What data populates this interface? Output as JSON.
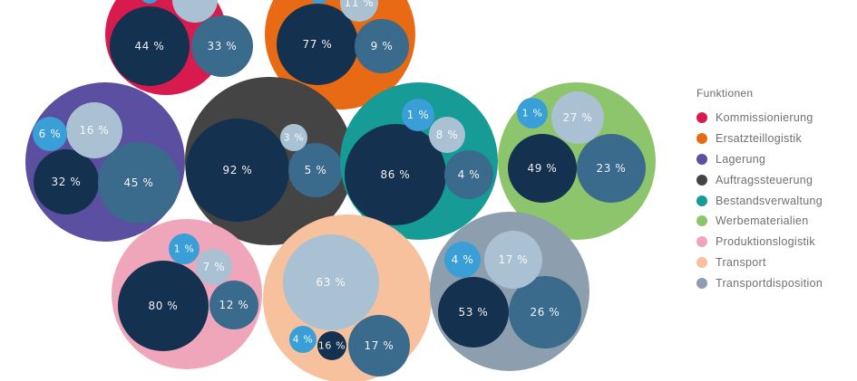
{
  "chart_data": {
    "type": "bubble-pack",
    "legend": {
      "title": "Funktionen",
      "placement": "right",
      "entries": [
        {
          "label": "Kommissionierung",
          "color": "#d81b4f"
        },
        {
          "label": "Ersatzteillogistik",
          "color": "#e86a14"
        },
        {
          "label": "Lagerung",
          "color": "#5a4fa0"
        },
        {
          "label": "Auftragssteuerung",
          "color": "#444444"
        },
        {
          "label": "Bestandsverwaltung",
          "color": "#169b96"
        },
        {
          "label": "Werbematerialien",
          "color": "#8cc56b"
        },
        {
          "label": "Produktionslogistik",
          "color": "#efa6ba"
        },
        {
          "label": "Transport",
          "color": "#f6c19c"
        },
        {
          "label": "Transportdisposition",
          "color": "#8d9fae"
        }
      ]
    },
    "shade_colors": {
      "navy": "#14314f",
      "steel": "#3a6a8c",
      "sky": "#3a9fd6",
      "pale": "#a9c1d3"
    },
    "groups": [
      {
        "function": "Kommissionierung",
        "values": [
          {
            "label": "44 %",
            "value": 44,
            "shade": "navy"
          },
          {
            "label": "33 %",
            "value": 33,
            "shade": "steel"
          },
          {
            "label": "",
            "value": null,
            "shade": "pale"
          },
          {
            "label": "",
            "value": null,
            "shade": "sky"
          }
        ]
      },
      {
        "function": "Ersatzteillogistik",
        "values": [
          {
            "label": "77 %",
            "value": 77,
            "shade": "navy"
          },
          {
            "label": "9 %",
            "value": 9,
            "shade": "steel"
          },
          {
            "label": "11 %",
            "value": 11,
            "shade": "pale"
          },
          {
            "label": "",
            "value": null,
            "shade": "sky"
          }
        ]
      },
      {
        "function": "Lagerung",
        "values": [
          {
            "label": "32 %",
            "value": 32,
            "shade": "navy"
          },
          {
            "label": "45 %",
            "value": 45,
            "shade": "steel"
          },
          {
            "label": "16 %",
            "value": 16,
            "shade": "pale"
          },
          {
            "label": "6 %",
            "value": 6,
            "shade": "sky"
          }
        ]
      },
      {
        "function": "Auftragssteuerung",
        "values": [
          {
            "label": "92 %",
            "value": 92,
            "shade": "navy"
          },
          {
            "label": "5 %",
            "value": 5,
            "shade": "steel"
          },
          {
            "label": "3 %",
            "value": 3,
            "shade": "pale"
          }
        ]
      },
      {
        "function": "Bestandsverwaltung",
        "values": [
          {
            "label": "86 %",
            "value": 86,
            "shade": "navy"
          },
          {
            "label": "4 %",
            "value": 4,
            "shade": "steel"
          },
          {
            "label": "8 %",
            "value": 8,
            "shade": "pale"
          },
          {
            "label": "1 %",
            "value": 1,
            "shade": "sky"
          }
        ]
      },
      {
        "function": "Werbematerialien",
        "values": [
          {
            "label": "49 %",
            "value": 49,
            "shade": "navy"
          },
          {
            "label": "23 %",
            "value": 23,
            "shade": "steel"
          },
          {
            "label": "27 %",
            "value": 27,
            "shade": "pale"
          },
          {
            "label": "1 %",
            "value": 1,
            "shade": "sky"
          }
        ]
      },
      {
        "function": "Produktionslogistik",
        "values": [
          {
            "label": "80 %",
            "value": 80,
            "shade": "navy"
          },
          {
            "label": "12 %",
            "value": 12,
            "shade": "steel"
          },
          {
            "label": "7 %",
            "value": 7,
            "shade": "pale"
          },
          {
            "label": "1 %",
            "value": 1,
            "shade": "sky"
          }
        ]
      },
      {
        "function": "Transport",
        "values": [
          {
            "label": "63 %",
            "value": 63,
            "shade": "pale"
          },
          {
            "label": "17 %",
            "value": 17,
            "shade": "steel"
          },
          {
            "label": "16 %",
            "value": 16,
            "shade": "navy"
          },
          {
            "label": "4 %",
            "value": 4,
            "shade": "sky"
          }
        ]
      },
      {
        "function": "Transportdisposition",
        "values": [
          {
            "label": "53 %",
            "value": 53,
            "shade": "navy"
          },
          {
            "label": "26 %",
            "value": 26,
            "shade": "steel"
          },
          {
            "label": "17 %",
            "value": 17,
            "shade": "pale"
          },
          {
            "label": "4 %",
            "value": 4,
            "shade": "sky"
          }
        ]
      }
    ]
  }
}
